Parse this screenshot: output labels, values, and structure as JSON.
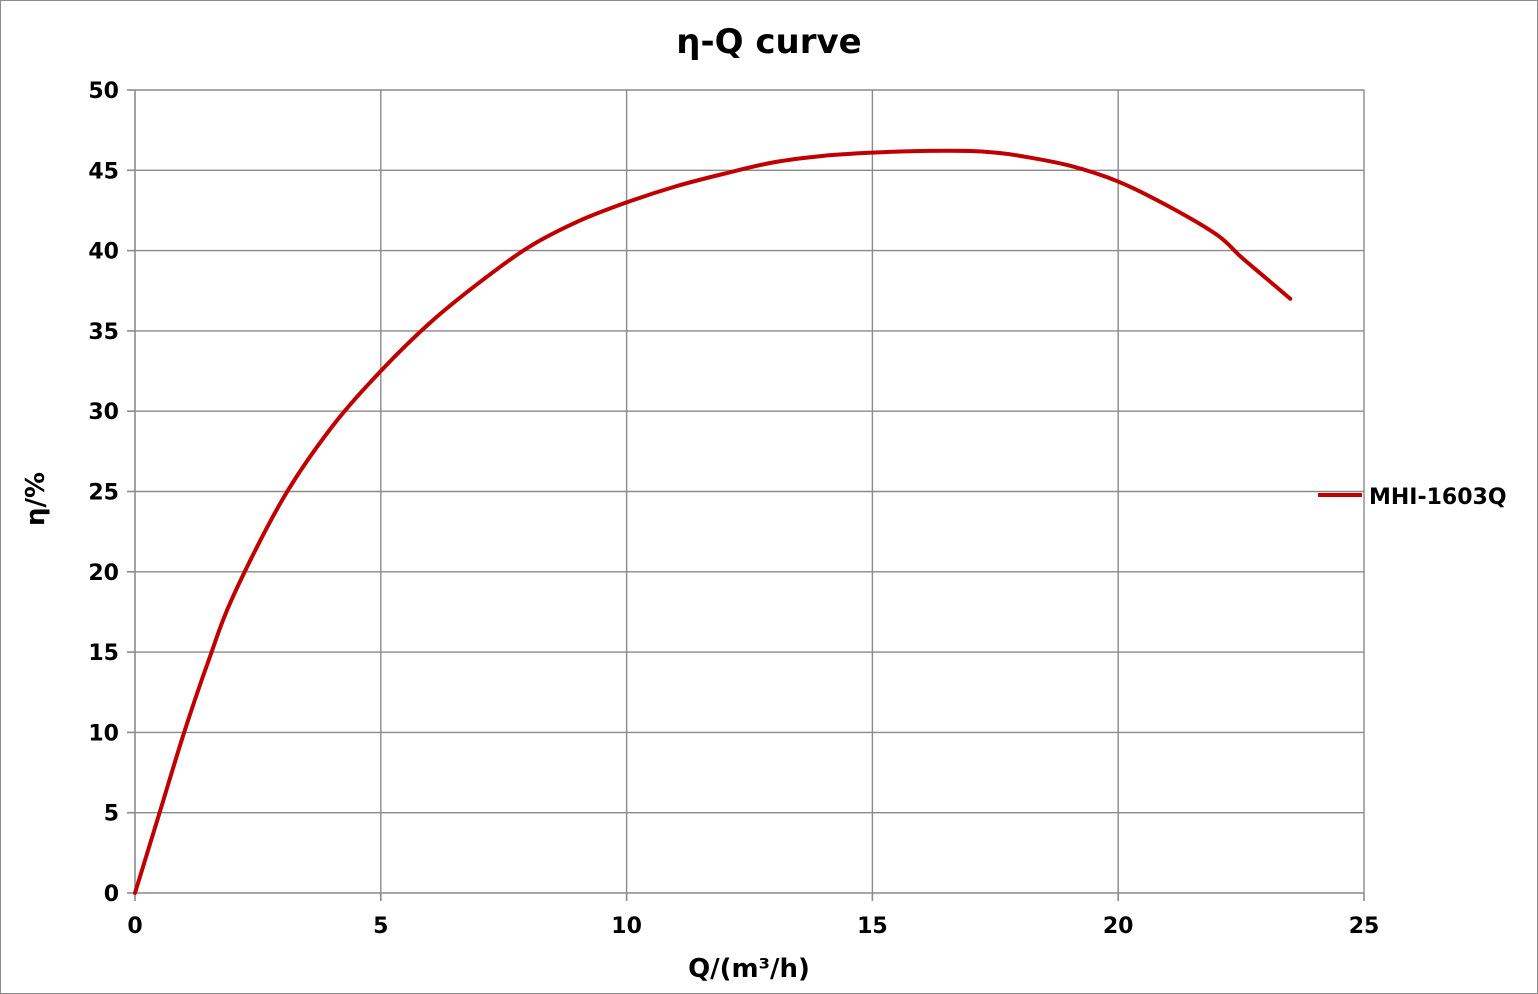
{
  "chart_data": {
    "type": "line",
    "title": "η-Q  curve",
    "xlabel": "Q/(m³/h)",
    "ylabel": "η/%",
    "xlim": [
      0,
      25
    ],
    "ylim": [
      0,
      50
    ],
    "x_ticks": [
      0,
      5,
      10,
      15,
      20,
      25
    ],
    "y_ticks": [
      0,
      5,
      10,
      15,
      20,
      25,
      30,
      35,
      40,
      45,
      50
    ],
    "grid": true,
    "legend_position": "right",
    "series": [
      {
        "name": "MHI-1603Q",
        "color": "#c00000",
        "x": [
          0,
          0.5,
          1,
          1.5,
          2,
          3,
          4,
          5,
          6,
          7,
          8,
          9,
          10,
          11,
          12,
          13,
          14,
          15,
          16,
          17,
          17.5,
          18,
          19,
          20,
          21,
          22,
          22.5,
          23,
          23.5
        ],
        "y": [
          0,
          5,
          10,
          14.5,
          18.5,
          24.5,
          29,
          32.5,
          35.5,
          38,
          40.2,
          41.8,
          43,
          44,
          44.8,
          45.5,
          45.9,
          46.1,
          46.2,
          46.2,
          46.1,
          45.9,
          45.3,
          44.3,
          42.8,
          41,
          39.6,
          38.3,
          37
        ]
      }
    ]
  }
}
